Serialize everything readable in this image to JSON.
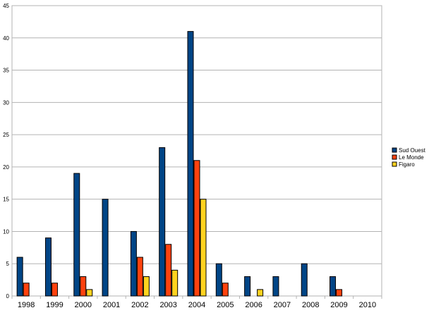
{
  "chart_data": {
    "type": "bar",
    "title": "",
    "xlabel": "",
    "ylabel": "",
    "ylim": [
      0,
      45
    ],
    "yticks": [
      0,
      5,
      10,
      15,
      20,
      25,
      30,
      35,
      40,
      45
    ],
    "grid": true,
    "legend_position": "right",
    "categories": [
      "1998",
      "1999",
      "2000",
      "2001",
      "2002",
      "2003",
      "2004",
      "2005",
      "2006",
      "2007",
      "2008",
      "2009",
      "2010"
    ],
    "series": [
      {
        "name": "Sud Ouest",
        "color": "#004586",
        "values": [
          6,
          9,
          19,
          15,
          10,
          23,
          41,
          5,
          3,
          3,
          5,
          3,
          0
        ]
      },
      {
        "name": "Le Monde",
        "color": "#ff420e",
        "values": [
          2,
          2,
          3,
          0,
          6,
          8,
          21,
          2,
          0,
          0,
          0,
          1,
          0
        ]
      },
      {
        "name": "Figaro",
        "color": "#ffd320",
        "values": [
          0,
          0,
          1,
          0,
          3,
          4,
          15,
          0,
          1,
          0,
          0,
          0,
          0
        ]
      }
    ]
  }
}
